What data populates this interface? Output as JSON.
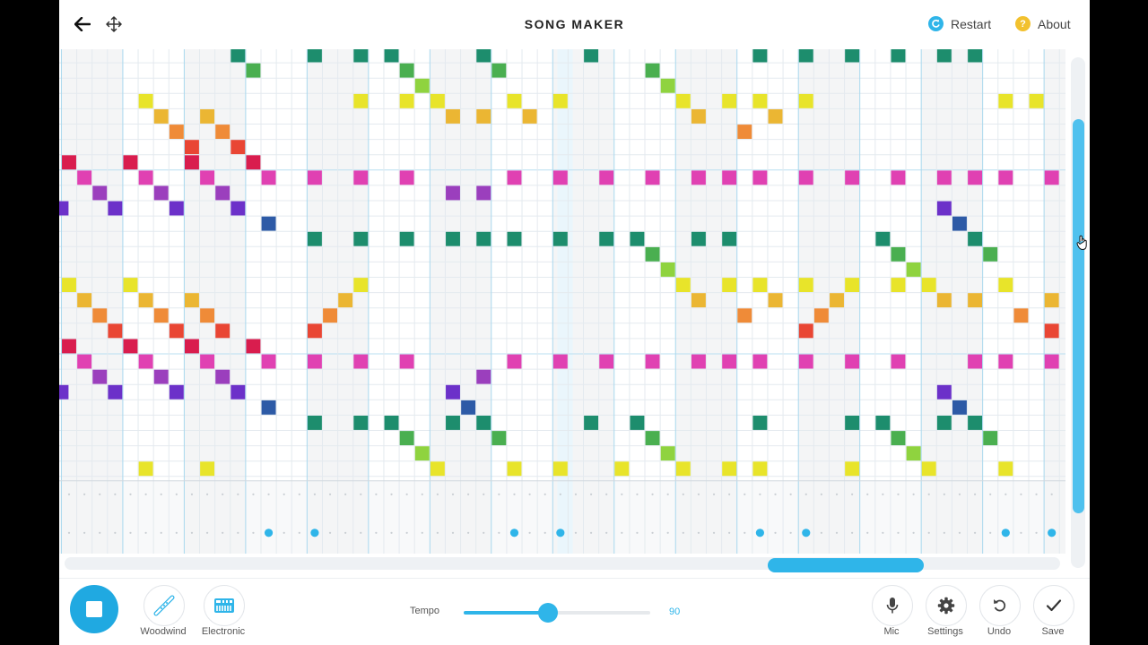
{
  "header": {
    "title": "SONG MAKER",
    "restart_label": "Restart",
    "about_label": "About",
    "back_icon": "arrow-left-icon",
    "move_icon": "move-arrows-icon"
  },
  "colors": {
    "accent": "#2fb5e9",
    "restart_icon": "#2fb5e9",
    "about_icon": "#f2c12e",
    "note_palette": {
      "dark_green": "#1d8d6d",
      "green": "#4aaf50",
      "lime": "#8fd33f",
      "yellow": "#e8e42a",
      "amber": "#ebb633",
      "orange": "#ef8b38",
      "red": "#e94634",
      "crimson": "#d91d4e",
      "pink": "#e041b2",
      "purple": "#9b3fbd",
      "violet": "#6c31c9",
      "blue": "#2d5aa6"
    }
  },
  "grid": {
    "rows": 28,
    "columns": 65,
    "first_column": -0.5,
    "octave_rows": [
      8,
      20
    ],
    "notes": [
      [
        0,
        11,
        "dark_green"
      ],
      [
        1,
        12,
        "green"
      ],
      [
        0,
        16,
        "dark_green"
      ],
      [
        0,
        19,
        "dark_green"
      ],
      [
        0,
        21,
        "dark_green"
      ],
      [
        1,
        22,
        "green"
      ],
      [
        2,
        23,
        "lime"
      ],
      [
        0,
        27,
        "dark_green"
      ],
      [
        1,
        28,
        "green"
      ],
      [
        0,
        34,
        "dark_green"
      ],
      [
        1,
        38,
        "green"
      ],
      [
        2,
        39,
        "lime"
      ],
      [
        0,
        45,
        "dark_green"
      ],
      [
        0,
        48,
        "dark_green"
      ],
      [
        0,
        51,
        "dark_green"
      ],
      [
        0,
        54,
        "dark_green"
      ],
      [
        0,
        57,
        "dark_green"
      ],
      [
        0,
        59,
        "dark_green"
      ],
      [
        3,
        5,
        "yellow"
      ],
      [
        3,
        19,
        "yellow"
      ],
      [
        3,
        22,
        "yellow"
      ],
      [
        3,
        24,
        "yellow"
      ],
      [
        3,
        29,
        "yellow"
      ],
      [
        3,
        32,
        "yellow"
      ],
      [
        3,
        40,
        "yellow"
      ],
      [
        3,
        43,
        "yellow"
      ],
      [
        3,
        45,
        "yellow"
      ],
      [
        3,
        48,
        "yellow"
      ],
      [
        3,
        61,
        "yellow"
      ],
      [
        3,
        63,
        "yellow"
      ],
      [
        4,
        6,
        "amber"
      ],
      [
        4,
        9,
        "amber"
      ],
      [
        4,
        25,
        "amber"
      ],
      [
        4,
        27,
        "amber"
      ],
      [
        4,
        30,
        "amber"
      ],
      [
        4,
        41,
        "amber"
      ],
      [
        4,
        46,
        "amber"
      ],
      [
        5,
        7,
        "orange"
      ],
      [
        5,
        10,
        "orange"
      ],
      [
        5,
        44,
        "orange"
      ],
      [
        6,
        8,
        "red"
      ],
      [
        6,
        11,
        "red"
      ],
      [
        7,
        0,
        "crimson"
      ],
      [
        7,
        4,
        "crimson"
      ],
      [
        7,
        8,
        "crimson"
      ],
      [
        7,
        12,
        "crimson"
      ],
      [
        8,
        1,
        "pink"
      ],
      [
        8,
        5,
        "pink"
      ],
      [
        8,
        9,
        "pink"
      ],
      [
        8,
        13,
        "pink"
      ],
      [
        8,
        16,
        "pink"
      ],
      [
        8,
        19,
        "pink"
      ],
      [
        8,
        22,
        "pink"
      ],
      [
        8,
        29,
        "pink"
      ],
      [
        8,
        32,
        "pink"
      ],
      [
        8,
        35,
        "pink"
      ],
      [
        8,
        38,
        "pink"
      ],
      [
        8,
        41,
        "pink"
      ],
      [
        8,
        43,
        "pink"
      ],
      [
        8,
        45,
        "pink"
      ],
      [
        8,
        48,
        "pink"
      ],
      [
        8,
        51,
        "pink"
      ],
      [
        8,
        54,
        "pink"
      ],
      [
        8,
        57,
        "pink"
      ],
      [
        8,
        59,
        "pink"
      ],
      [
        8,
        61,
        "pink"
      ],
      [
        8,
        64,
        "pink"
      ],
      [
        9,
        2,
        "purple"
      ],
      [
        9,
        6,
        "purple"
      ],
      [
        9,
        10,
        "purple"
      ],
      [
        9,
        25,
        "purple"
      ],
      [
        9,
        27,
        "purple"
      ],
      [
        10,
        -0.5,
        "violet"
      ],
      [
        10,
        3,
        "violet"
      ],
      [
        10,
        7,
        "violet"
      ],
      [
        10,
        11,
        "violet"
      ],
      [
        10,
        57,
        "violet"
      ],
      [
        11,
        13,
        "blue"
      ],
      [
        11,
        58,
        "blue"
      ],
      [
        12,
        16,
        "dark_green"
      ],
      [
        12,
        19,
        "dark_green"
      ],
      [
        12,
        22,
        "dark_green"
      ],
      [
        12,
        25,
        "dark_green"
      ],
      [
        12,
        27,
        "dark_green"
      ],
      [
        12,
        29,
        "dark_green"
      ],
      [
        12,
        32,
        "dark_green"
      ],
      [
        12,
        35,
        "dark_green"
      ],
      [
        12,
        37,
        "dark_green"
      ],
      [
        12,
        41,
        "dark_green"
      ],
      [
        12,
        43,
        "dark_green"
      ],
      [
        12,
        53,
        "dark_green"
      ],
      [
        12,
        59,
        "dark_green"
      ],
      [
        13,
        38,
        "green"
      ],
      [
        13,
        54,
        "green"
      ],
      [
        13,
        60,
        "green"
      ],
      [
        14,
        39,
        "lime"
      ],
      [
        14,
        55,
        "lime"
      ],
      [
        15,
        0,
        "yellow"
      ],
      [
        15,
        4,
        "yellow"
      ],
      [
        15,
        19,
        "yellow"
      ],
      [
        15,
        40,
        "yellow"
      ],
      [
        15,
        43,
        "yellow"
      ],
      [
        15,
        45,
        "yellow"
      ],
      [
        15,
        48,
        "yellow"
      ],
      [
        15,
        51,
        "yellow"
      ],
      [
        15,
        54,
        "yellow"
      ],
      [
        15,
        56,
        "yellow"
      ],
      [
        15,
        61,
        "yellow"
      ],
      [
        16,
        1,
        "amber"
      ],
      [
        16,
        5,
        "amber"
      ],
      [
        16,
        8,
        "amber"
      ],
      [
        16,
        18,
        "amber"
      ],
      [
        16,
        41,
        "amber"
      ],
      [
        16,
        46,
        "amber"
      ],
      [
        16,
        50,
        "amber"
      ],
      [
        16,
        57,
        "amber"
      ],
      [
        16,
        59,
        "amber"
      ],
      [
        16,
        64,
        "amber"
      ],
      [
        17,
        2,
        "orange"
      ],
      [
        17,
        6,
        "orange"
      ],
      [
        17,
        9,
        "orange"
      ],
      [
        17,
        17,
        "orange"
      ],
      [
        17,
        44,
        "orange"
      ],
      [
        17,
        49,
        "orange"
      ],
      [
        17,
        62,
        "orange"
      ],
      [
        18,
        3,
        "red"
      ],
      [
        18,
        7,
        "red"
      ],
      [
        18,
        10,
        "red"
      ],
      [
        18,
        16,
        "red"
      ],
      [
        18,
        48,
        "red"
      ],
      [
        18,
        64,
        "red"
      ],
      [
        19,
        0,
        "crimson"
      ],
      [
        19,
        4,
        "crimson"
      ],
      [
        19,
        8,
        "crimson"
      ],
      [
        19,
        12,
        "crimson"
      ],
      [
        20,
        1,
        "pink"
      ],
      [
        20,
        5,
        "pink"
      ],
      [
        20,
        9,
        "pink"
      ],
      [
        20,
        13,
        "pink"
      ],
      [
        20,
        16,
        "pink"
      ],
      [
        20,
        19,
        "pink"
      ],
      [
        20,
        22,
        "pink"
      ],
      [
        20,
        29,
        "pink"
      ],
      [
        20,
        32,
        "pink"
      ],
      [
        20,
        35,
        "pink"
      ],
      [
        20,
        38,
        "pink"
      ],
      [
        20,
        41,
        "pink"
      ],
      [
        20,
        43,
        "pink"
      ],
      [
        20,
        45,
        "pink"
      ],
      [
        20,
        48,
        "pink"
      ],
      [
        20,
        51,
        "pink"
      ],
      [
        20,
        54,
        "pink"
      ],
      [
        20,
        59,
        "pink"
      ],
      [
        20,
        61,
        "pink"
      ],
      [
        20,
        64,
        "pink"
      ],
      [
        21,
        2,
        "purple"
      ],
      [
        21,
        6,
        "purple"
      ],
      [
        21,
        10,
        "purple"
      ],
      [
        21,
        27,
        "purple"
      ],
      [
        22,
        -0.5,
        "violet"
      ],
      [
        22,
        3,
        "violet"
      ],
      [
        22,
        7,
        "violet"
      ],
      [
        22,
        11,
        "violet"
      ],
      [
        22,
        25,
        "violet"
      ],
      [
        22,
        57,
        "violet"
      ],
      [
        23,
        13,
        "blue"
      ],
      [
        23,
        26,
        "blue"
      ],
      [
        23,
        58,
        "blue"
      ],
      [
        24,
        16,
        "dark_green"
      ],
      [
        24,
        19,
        "dark_green"
      ],
      [
        24,
        21,
        "dark_green"
      ],
      [
        24,
        25,
        "dark_green"
      ],
      [
        24,
        27,
        "dark_green"
      ],
      [
        24,
        34,
        "dark_green"
      ],
      [
        24,
        37,
        "dark_green"
      ],
      [
        24,
        45,
        "dark_green"
      ],
      [
        24,
        51,
        "dark_green"
      ],
      [
        24,
        53,
        "dark_green"
      ],
      [
        24,
        57,
        "dark_green"
      ],
      [
        24,
        59,
        "dark_green"
      ],
      [
        25,
        22,
        "green"
      ],
      [
        25,
        28,
        "green"
      ],
      [
        25,
        38,
        "green"
      ],
      [
        25,
        54,
        "green"
      ],
      [
        25,
        60,
        "green"
      ],
      [
        26,
        23,
        "lime"
      ],
      [
        26,
        39,
        "lime"
      ],
      [
        26,
        55,
        "lime"
      ],
      [
        27,
        5,
        "yellow"
      ],
      [
        27,
        9,
        "yellow"
      ],
      [
        27,
        24,
        "yellow"
      ],
      [
        27,
        29,
        "yellow"
      ],
      [
        27,
        32,
        "yellow"
      ],
      [
        27,
        36,
        "yellow"
      ],
      [
        27,
        40,
        "yellow"
      ],
      [
        27,
        43,
        "yellow"
      ],
      [
        27,
        45,
        "yellow"
      ],
      [
        27,
        51,
        "yellow"
      ],
      [
        27,
        56,
        "yellow"
      ],
      [
        27,
        61,
        "yellow"
      ]
    ]
  },
  "percussion": {
    "hits": [
      13,
      16,
      29,
      32,
      45,
      48,
      61,
      64
    ]
  },
  "instruments": [
    {
      "label": "Woodwind",
      "icon": "flute-icon"
    },
    {
      "label": "Electronic",
      "icon": "synth-keyboard-icon"
    }
  ],
  "tempo": {
    "label": "Tempo",
    "value": "90",
    "fraction": 0.45
  },
  "tools": [
    {
      "label": "Mic",
      "icon": "microphone-icon"
    },
    {
      "label": "Settings",
      "icon": "gear-icon"
    },
    {
      "label": "Undo",
      "icon": "undo-icon"
    },
    {
      "label": "Save",
      "icon": "checkmark-icon"
    }
  ],
  "playback": {
    "state_icon": "stop-icon"
  }
}
